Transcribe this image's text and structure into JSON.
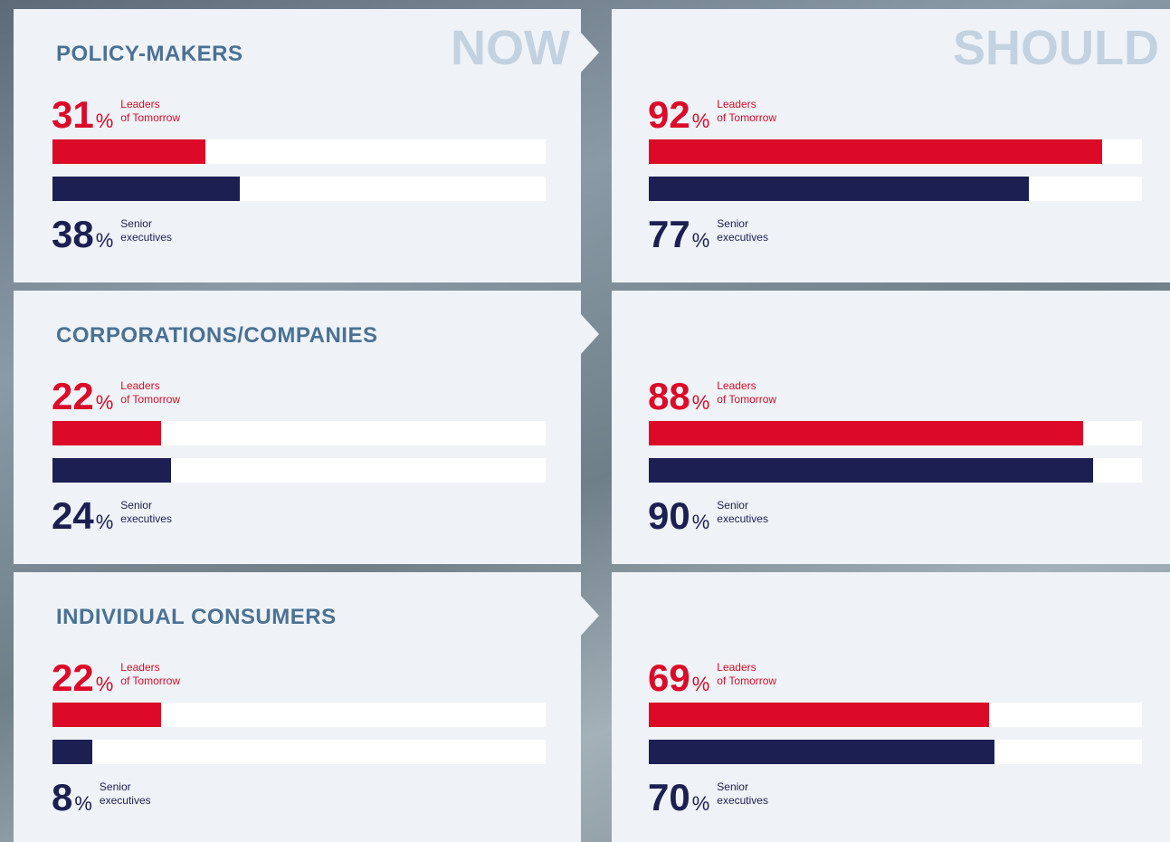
{
  "chart_data": [
    {
      "type": "bar",
      "title": "POLICY-MAKERS",
      "label": "NOW",
      "xlim": [
        0,
        100
      ],
      "unit": "%",
      "series": [
        {
          "name": "Leaders\nof Tomorrow",
          "color": "#dc0a28",
          "values": [
            31
          ]
        },
        {
          "name": "Senior\nexecutives",
          "color": "#1c1f52",
          "values": [
            38
          ]
        }
      ]
    },
    {
      "type": "bar",
      "label": "SHOULD",
      "xlim": [
        0,
        100
      ],
      "unit": "%",
      "series": [
        {
          "name": "Leaders\nof Tomorrow",
          "color": "#dc0a28",
          "values": [
            92
          ]
        },
        {
          "name": "Senior\nexecutives",
          "color": "#1c1f52",
          "values": [
            77
          ]
        }
      ]
    },
    {
      "type": "bar",
      "title": "CORPORATIONS/COMPANIES",
      "xlim": [
        0,
        100
      ],
      "unit": "%",
      "series": [
        {
          "name": "Leaders\nof Tomorrow",
          "color": "#dc0a28",
          "values": [
            22
          ]
        },
        {
          "name": "Senior\nexecutives",
          "color": "#1c1f52",
          "values": [
            24
          ]
        }
      ]
    },
    {
      "type": "bar",
      "xlim": [
        0,
        100
      ],
      "unit": "%",
      "series": [
        {
          "name": "Leaders\nof Tomorrow",
          "color": "#dc0a28",
          "values": [
            88
          ]
        },
        {
          "name": "Senior\nexecutives",
          "color": "#1c1f52",
          "values": [
            90
          ]
        }
      ]
    },
    {
      "type": "bar",
      "title": "INDIVIDUAL CONSUMERS",
      "xlim": [
        0,
        100
      ],
      "unit": "%",
      "series": [
        {
          "name": "Leaders\nof Tomorrow",
          "color": "#dc0a28",
          "values": [
            22
          ]
        },
        {
          "name": "Senior\nexecutives",
          "color": "#1c1f52",
          "values": [
            8
          ]
        }
      ]
    },
    {
      "type": "bar",
      "xlim": [
        0,
        100
      ],
      "unit": "%",
      "series": [
        {
          "name": "Leaders\nof Tomorrow",
          "color": "#dc0a28",
          "values": [
            69
          ]
        },
        {
          "name": "Senior\nexecutives",
          "color": "#1c1f52",
          "values": [
            70
          ]
        }
      ]
    }
  ]
}
